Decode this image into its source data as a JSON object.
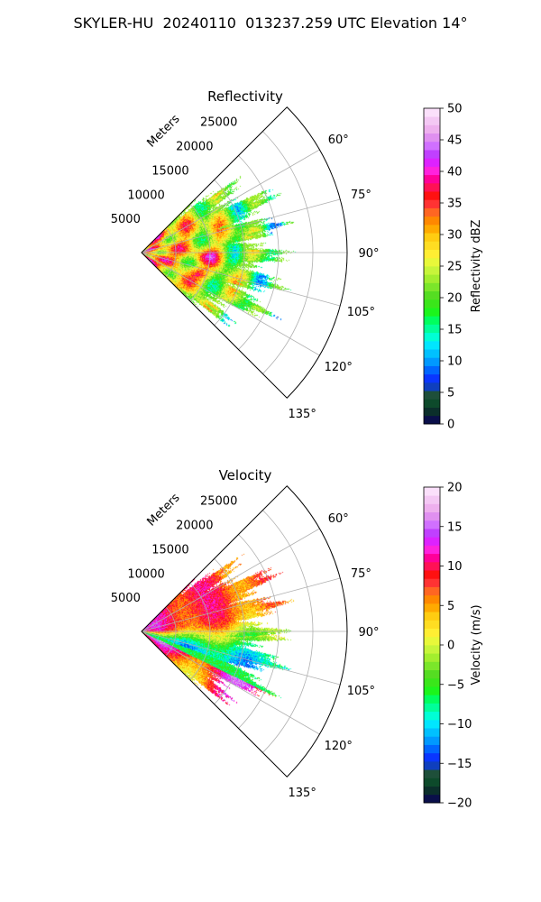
{
  "suptitle": "SKYLER-HU  20240110  013237.259 UTC Elevation 14°",
  "range_unit_label": "Meters",
  "chart_data": [
    {
      "type": "heatmap",
      "projection": "polar-sector",
      "title": "Reflectivity",
      "azimuth_range_deg": [
        45,
        135
      ],
      "azimuth_ticks": [
        "60°",
        "75°",
        "90°",
        "105°",
        "120°",
        "135°"
      ],
      "azimuth_tick_values": [
        60,
        75,
        90,
        105,
        120,
        135
      ],
      "range_ticks": [
        "5000",
        "10000",
        "15000",
        "20000",
        "25000"
      ],
      "range_tick_values": [
        5000,
        10000,
        15000,
        20000,
        25000
      ],
      "range_max_m": 30000,
      "data_extent_m": 18500,
      "grid": true,
      "colorbar": {
        "label": "Reflectivity dBZ",
        "min": 0,
        "max": 50,
        "ticks": [
          "0",
          "5",
          "10",
          "15",
          "20",
          "25",
          "30",
          "35",
          "40",
          "45",
          "50"
        ],
        "colors": [
          "#0a0f4a",
          "#0b2f2b",
          "#0d4a2b",
          "#1e4f3a",
          "#0f3fbe",
          "#0a36ff",
          "#0066ff",
          "#0099ff",
          "#00c0ff",
          "#00e6ff",
          "#00ffd5",
          "#00ff99",
          "#00ff5e",
          "#1cf51c",
          "#3ae61a",
          "#55dd22",
          "#7be62a",
          "#a3ee2e",
          "#c7f53a",
          "#e8f83a",
          "#ffee33",
          "#ffdd22",
          "#ffcc11",
          "#ffaa00",
          "#ff8800",
          "#ff6622",
          "#ff3333",
          "#ff1111",
          "#ff1155",
          "#ff0099",
          "#ff22dd",
          "#dd22ff",
          "#c040ff",
          "#d070ff",
          "#e090f0",
          "#eeb0ee",
          "#f4c8f4",
          "#fbe0fb"
        ]
      }
    },
    {
      "type": "heatmap",
      "projection": "polar-sector",
      "title": "Velocity",
      "azimuth_range_deg": [
        45,
        135
      ],
      "azimuth_ticks": [
        "60°",
        "75°",
        "90°",
        "105°",
        "120°",
        "135°"
      ],
      "azimuth_tick_values": [
        60,
        75,
        90,
        105,
        120,
        135
      ],
      "range_ticks": [
        "5000",
        "10000",
        "15000",
        "20000",
        "25000"
      ],
      "range_tick_values": [
        5000,
        10000,
        15000,
        20000,
        25000
      ],
      "range_max_m": 30000,
      "data_extent_m": 18500,
      "grid": true,
      "colorbar": {
        "label": "Velocity (m/s)",
        "min": -20,
        "max": 20,
        "ticks": [
          "−20",
          "−15",
          "−10",
          "−5",
          "0",
          "5",
          "10",
          "15",
          "20"
        ],
        "colors": [
          "#0a0f4a",
          "#0b2f2b",
          "#0d4a2b",
          "#1e4f3a",
          "#0f3fbe",
          "#0a36ff",
          "#0066ff",
          "#0099ff",
          "#00c0ff",
          "#00e6ff",
          "#00ffd5",
          "#00ff99",
          "#00ff5e",
          "#1cf51c",
          "#3ae61a",
          "#55dd22",
          "#7be62a",
          "#a3ee2e",
          "#c7f53a",
          "#e8f83a",
          "#ffee33",
          "#ffdd22",
          "#ffcc11",
          "#ffaa00",
          "#ff8800",
          "#ff6622",
          "#ff3333",
          "#ff1111",
          "#ff1155",
          "#ff0099",
          "#ff22dd",
          "#dd22ff",
          "#c040ff",
          "#d070ff",
          "#e090f0",
          "#eeb0ee",
          "#f4c8f4",
          "#fbe0fb"
        ]
      }
    }
  ]
}
